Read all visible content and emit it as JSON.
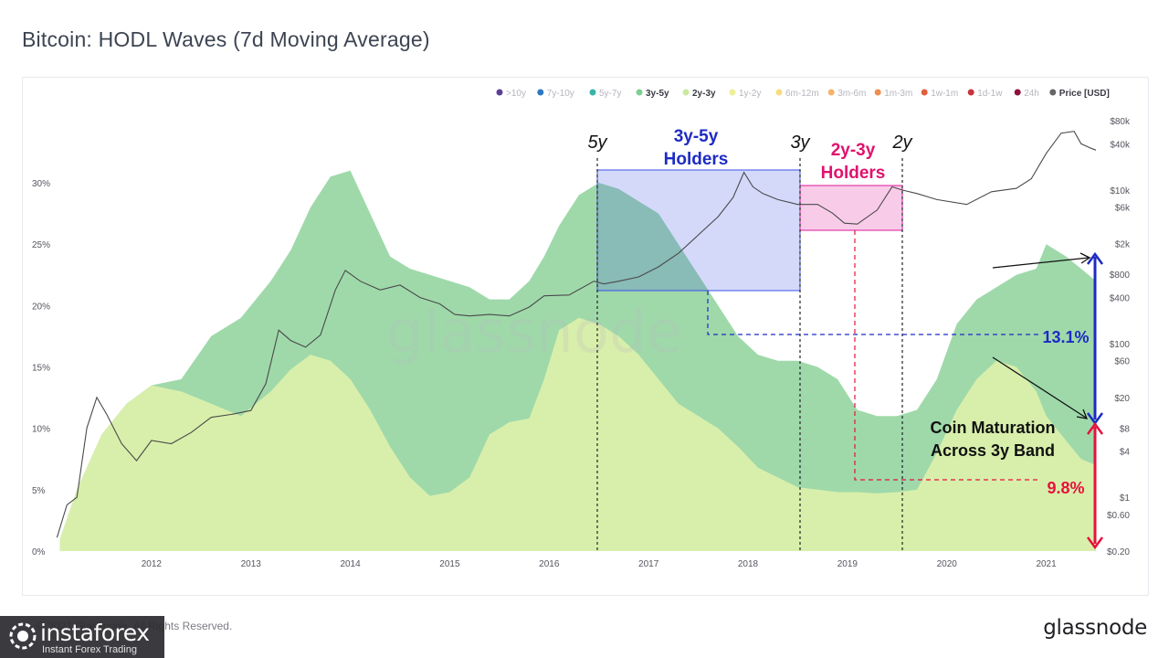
{
  "page": {
    "title": "Bitcoin: HODL Waves (7d Moving Average)",
    "copyright": "© 2021 Glassnode. All Rights Reserved.",
    "brand": "glassnode",
    "watermark": {
      "brand": "instaforex",
      "tagline": "Instant Forex Trading"
    }
  },
  "chart_data": {
    "type": "area",
    "legend": {
      "placement": "top-right",
      "items": [
        {
          "label": ">10y",
          "color": "#5b3f95",
          "active": false
        },
        {
          "label": "7y-10y",
          "color": "#2e78c2",
          "active": false
        },
        {
          "label": "5y-7y",
          "color": "#38b5a7",
          "active": false
        },
        {
          "label": "3y-5y",
          "color": "#7fcf93",
          "active": true
        },
        {
          "label": "2y-3y",
          "color": "#c8ea9c",
          "active": true
        },
        {
          "label": "1y-2y",
          "color": "#ecef9a",
          "active": false
        },
        {
          "label": "6m-12m",
          "color": "#f6dc7e",
          "active": false
        },
        {
          "label": "3m-6m",
          "color": "#f6b36a",
          "active": false
        },
        {
          "label": "1m-3m",
          "color": "#ef8d4f",
          "active": false
        },
        {
          "label": "1w-1m",
          "color": "#e35e3c",
          "active": false
        },
        {
          "label": "1d-1w",
          "color": "#c8343e",
          "active": false
        },
        {
          "label": "24h",
          "color": "#8e1037",
          "active": false
        },
        {
          "label": "Price [USD]",
          "color": "#666666",
          "active": true
        }
      ]
    },
    "x_ticks": [
      "2012",
      "2013",
      "2014",
      "2015",
      "2016",
      "2017",
      "2018",
      "2019",
      "2020",
      "2021"
    ],
    "y_left_ticks": [
      "0%",
      "5%",
      "10%",
      "15%",
      "20%",
      "25%",
      "30%"
    ],
    "y_left_range": [
      0,
      30
    ],
    "y_right_ticks": [
      "$0.20",
      "$0.60",
      "$1",
      "$4",
      "$8",
      "$20",
      "$60",
      "$100",
      "$400",
      "$800",
      "$2k",
      "$6k",
      "$10k",
      "$40k",
      "$80k"
    ],
    "y_right_scale": "log",
    "grid": false,
    "series": [
      {
        "name": "2y-3y",
        "color": "#d8efab",
        "x": [
          2011.08,
          2011.25,
          2011.5,
          2011.75,
          2012.0,
          2012.3,
          2012.6,
          2012.9,
          2013.2,
          2013.4,
          2013.6,
          2013.8,
          2014.0,
          2014.2,
          2014.4,
          2014.6,
          2014.8,
          2015.0,
          2015.2,
          2015.4,
          2015.6,
          2015.8,
          2015.95,
          2016.1,
          2016.3,
          2016.5,
          2016.7,
          2016.9,
          2017.1,
          2017.3,
          2017.5,
          2017.7,
          2017.9,
          2018.1,
          2018.3,
          2018.5,
          2018.7,
          2018.9,
          2019.1,
          2019.3,
          2019.5,
          2019.7,
          2019.9,
          2020.1,
          2020.3,
          2020.5,
          2020.7,
          2020.9,
          2021.0,
          2021.2,
          2021.35,
          2021.5
        ],
        "values": [
          1.0,
          5.0,
          9.5,
          12.0,
          13.5,
          13.0,
          12.0,
          11.0,
          13.0,
          14.8,
          16.0,
          15.5,
          14.0,
          11.5,
          8.5,
          6.0,
          4.5,
          4.8,
          6.0,
          9.5,
          10.5,
          10.8,
          14.0,
          18.0,
          19.0,
          18.5,
          17.5,
          16.0,
          14.0,
          12.0,
          11.0,
          10.0,
          8.5,
          6.8,
          6.0,
          5.2,
          5.0,
          4.8,
          4.8,
          4.7,
          4.8,
          5.0,
          8.0,
          11.5,
          14.0,
          15.5,
          15.0,
          13.0,
          11.0,
          9.0,
          7.5,
          7.0
        ]
      },
      {
        "name": "3y-5y",
        "color": "#9fd9aa",
        "x": [
          2011.08,
          2011.25,
          2011.5,
          2011.75,
          2012.0,
          2012.3,
          2012.6,
          2012.9,
          2013.2,
          2013.4,
          2013.6,
          2013.8,
          2014.0,
          2014.2,
          2014.4,
          2014.6,
          2014.8,
          2015.0,
          2015.2,
          2015.4,
          2015.6,
          2015.8,
          2015.95,
          2016.1,
          2016.3,
          2016.5,
          2016.7,
          2016.9,
          2017.1,
          2017.3,
          2017.5,
          2017.7,
          2017.9,
          2018.1,
          2018.3,
          2018.5,
          2018.7,
          2018.9,
          2019.1,
          2019.3,
          2019.5,
          2019.7,
          2019.9,
          2020.1,
          2020.3,
          2020.5,
          2020.7,
          2020.9,
          2021.0,
          2021.2,
          2021.35,
          2021.5
        ],
        "values": [
          1.0,
          5.0,
          9.5,
          12.0,
          13.5,
          14.0,
          17.5,
          19.0,
          22.0,
          24.5,
          28.0,
          30.5,
          31.0,
          27.5,
          24.0,
          23.0,
          22.5,
          22.0,
          21.5,
          20.5,
          20.5,
          22.0,
          24.0,
          26.5,
          29.0,
          30.0,
          29.5,
          28.5,
          27.5,
          25.0,
          22.5,
          20.0,
          17.5,
          16.0,
          15.5,
          15.5,
          15.0,
          14.0,
          11.5,
          11.0,
          11.0,
          11.5,
          14.0,
          18.5,
          20.5,
          21.5,
          22.5,
          23.0,
          25.0,
          24.0,
          23.0,
          22.0
        ]
      }
    ],
    "price": {
      "name": "Price [USD]",
      "color": "#4a4a4a",
      "x": [
        2011.05,
        2011.15,
        2011.25,
        2011.35,
        2011.45,
        2011.55,
        2011.7,
        2011.85,
        2012.0,
        2012.2,
        2012.4,
        2012.6,
        2012.8,
        2013.0,
        2013.15,
        2013.28,
        2013.4,
        2013.55,
        2013.7,
        2013.85,
        2013.95,
        2014.1,
        2014.3,
        2014.5,
        2014.7,
        2014.9,
        2015.05,
        2015.2,
        2015.4,
        2015.6,
        2015.8,
        2015.95,
        2016.2,
        2016.45,
        2016.55,
        2016.7,
        2016.9,
        2017.1,
        2017.3,
        2017.5,
        2017.7,
        2017.85,
        2017.96,
        2018.05,
        2018.15,
        2018.3,
        2018.5,
        2018.7,
        2018.85,
        2018.97,
        2019.1,
        2019.3,
        2019.45,
        2019.55,
        2019.7,
        2019.9,
        2020.2,
        2020.45,
        2020.7,
        2020.85,
        2021.0,
        2021.15,
        2021.28,
        2021.35,
        2021.45,
        2021.5
      ],
      "values": [
        0.3,
        0.8,
        1.0,
        8.0,
        20.0,
        12.0,
        5.0,
        3.0,
        5.5,
        5.0,
        7.0,
        11.0,
        12.0,
        13.5,
        30.0,
        150.0,
        110.0,
        90.0,
        130.0,
        500.0,
        900.0,
        650.0,
        500.0,
        580.0,
        400.0,
        330.0,
        240.0,
        230.0,
        240.0,
        230.0,
        300.0,
        420.0,
        430.0,
        650.0,
        600.0,
        650.0,
        740.0,
        1000.0,
        1500.0,
        2600.0,
        4500.0,
        8000.0,
        17000.0,
        11000.0,
        9000.0,
        7500.0,
        6500.0,
        6500.0,
        5000.0,
        3700.0,
        3600.0,
        5500.0,
        11000.0,
        10000.0,
        9000.0,
        7500.0,
        6500.0,
        9500.0,
        10500.0,
        14000.0,
        30000.0,
        55000.0,
        58000.0,
        40000.0,
        35000.0,
        33000.0
      ]
    },
    "annotations": {
      "marker_5y": "5y",
      "marker_3y": "3y",
      "marker_2y": "2y",
      "box_3y5y_line1": "3y-5y",
      "box_3y5y_line2": "Holders",
      "box_2y3y_line1": "2y-3y",
      "box_2y3y_line2": "Holders",
      "pct_blue": "13.1%",
      "pct_red": "9.8%",
      "maturation_line1": "Coin Maturation",
      "maturation_line2": "Across 3y Band",
      "watermark": "glassnode"
    },
    "colors": {
      "box_blue": "#3b50e8",
      "box_pink": "#e0169a",
      "label_blue": "#1d2bc4",
      "label_pink": "#e0126d",
      "pct_red": "#e8113d"
    }
  }
}
